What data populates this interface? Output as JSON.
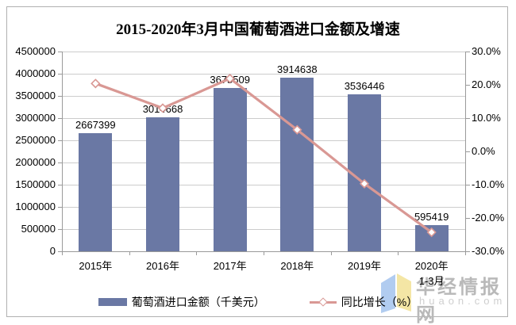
{
  "title": "2015-2020年3月中国葡萄酒进口金额及增速",
  "chart_data": {
    "type": "bar",
    "combo": "bar+line",
    "title": "2015-2020年3月中国葡萄酒进口金额及增速",
    "categories": [
      "2015年",
      "2016年",
      "2017年",
      "2018年",
      "2019年",
      "2020年1-3月"
    ],
    "category_label_lines": [
      [
        "2015年"
      ],
      [
        "2016年"
      ],
      [
        "2017年"
      ],
      [
        "2018年"
      ],
      [
        "2019年"
      ],
      [
        "2020年",
        "1-3月"
      ]
    ],
    "series": [
      {
        "name": "葡萄酒进口金额（千美元）",
        "type": "bar",
        "axis": "left",
        "values": [
          2667399,
          3014668,
          3675509,
          3914638,
          3536446,
          595419
        ],
        "data_labels": [
          "2667399",
          "3014668",
          "3675509",
          "3914638",
          "3536446",
          "595419"
        ],
        "color": "#6a78a4"
      },
      {
        "name": "同比增长（%）",
        "type": "line",
        "axis": "right",
        "values": [
          20.4,
          13.0,
          21.9,
          6.5,
          -9.7,
          -24.3
        ],
        "color": "#d99894",
        "marker": "diamond",
        "marker_fill": "#ffffff"
      }
    ],
    "left_axis": {
      "min": 0,
      "max": 4500000,
      "step": 500000,
      "tick_labels": [
        "4500000",
        "4000000",
        "3500000",
        "3000000",
        "2500000",
        "2000000",
        "1500000",
        "1000000",
        "500000",
        "0"
      ]
    },
    "right_axis": {
      "min": -30,
      "max": 30,
      "step": 10,
      "tick_labels": [
        "30.0%",
        "20.0%",
        "10.0%",
        "0.0%",
        "-10.0%",
        "-20.0%",
        "-30.0%"
      ]
    },
    "grid": true,
    "legend_position": "bottom"
  },
  "legend": {
    "bar_label": "葡萄酒进口金额（千美元）",
    "line_label": "同比增长（%）"
  },
  "watermark": {
    "brand": "华经情报网",
    "domain": "huaon.com",
    "logo_blue": "#a9c6ee",
    "logo_yellow": "#f3e39b"
  },
  "colors": {
    "bar": "#6a78a4",
    "line": "#d99894",
    "marker_fill": "#ffffff",
    "gridline": "#cccccc",
    "axis": "#9a9a9a",
    "text": "#000000",
    "border": "#b0b0b0",
    "watermark_text": "#b9b9b9",
    "watermark_domain": "#cfcfcf"
  }
}
